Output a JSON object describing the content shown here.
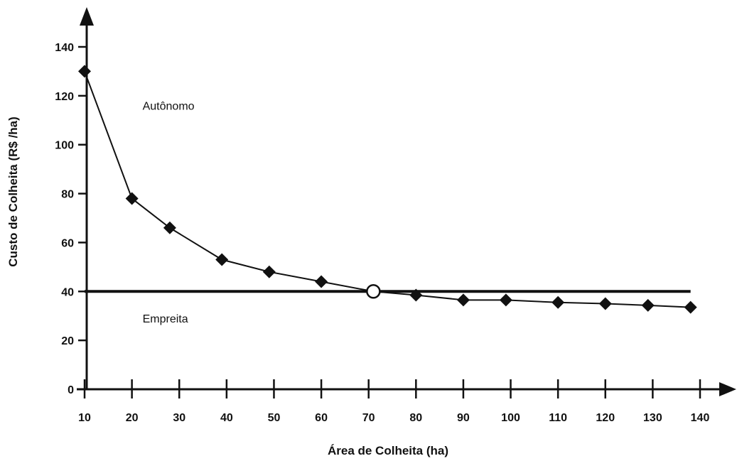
{
  "chart_data": {
    "type": "line",
    "title": "",
    "xlabel": "Área de Colheita  (ha)",
    "ylabel": "Custo de Colheita (R$ /ha)",
    "xlim": [
      10,
      140
    ],
    "ylim": [
      0,
      140
    ],
    "x_ticks": [
      "10",
      "20",
      "30",
      "40",
      "50",
      "60",
      "70",
      "80",
      "90",
      "100",
      "110",
      "120",
      "130",
      "140"
    ],
    "y_ticks": [
      "0",
      "20",
      "40",
      "60",
      "80",
      "100",
      "120",
      "140"
    ],
    "grid": false,
    "legend": "none",
    "series": [
      {
        "name": "Autônomo",
        "x": [
          10,
          20,
          28,
          39,
          49,
          60,
          71,
          80,
          90,
          99,
          110,
          120,
          129,
          138
        ],
        "y": [
          130,
          78,
          66,
          53,
          48,
          44,
          40,
          38.5,
          36.5,
          36.5,
          35.5,
          35,
          34.3,
          33.5
        ]
      },
      {
        "name": "Empreita",
        "x": [
          10,
          138
        ],
        "y": [
          40,
          40
        ]
      }
    ],
    "intersection": {
      "x": 71,
      "y": 40
    },
    "annotations": [
      {
        "text": "Autônomo",
        "x": 20,
        "y": 116
      },
      {
        "text": "Empreita",
        "x": 20,
        "y": 29
      }
    ],
    "colors": {
      "curve": "#111111",
      "markers": "#111111",
      "intersection_fill": "#ffffff"
    }
  }
}
